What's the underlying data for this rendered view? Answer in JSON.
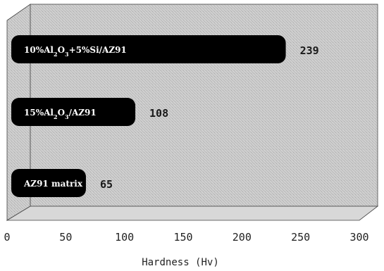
{
  "chart_data": {
    "type": "bar",
    "orientation": "horizontal",
    "categories": [
      "10%Al2O3+5%Si/AZ91",
      "15%Al2O3/AZ91",
      "AZ91 matrix"
    ],
    "values": [
      239,
      108,
      65
    ],
    "value_labels": [
      "239",
      "108",
      "65"
    ],
    "title": "",
    "xlabel": "Hardness (Hv)",
    "ylabel": "",
    "xlim": [
      0,
      300
    ],
    "xticks": [
      "0",
      "50",
      "100",
      "150",
      "200",
      "250",
      "300"
    ],
    "grid": false,
    "legend": "none",
    "colors": {
      "bar": "#000000",
      "plot_background": "#c8c8c8",
      "floor": "#d6d6d6"
    }
  }
}
